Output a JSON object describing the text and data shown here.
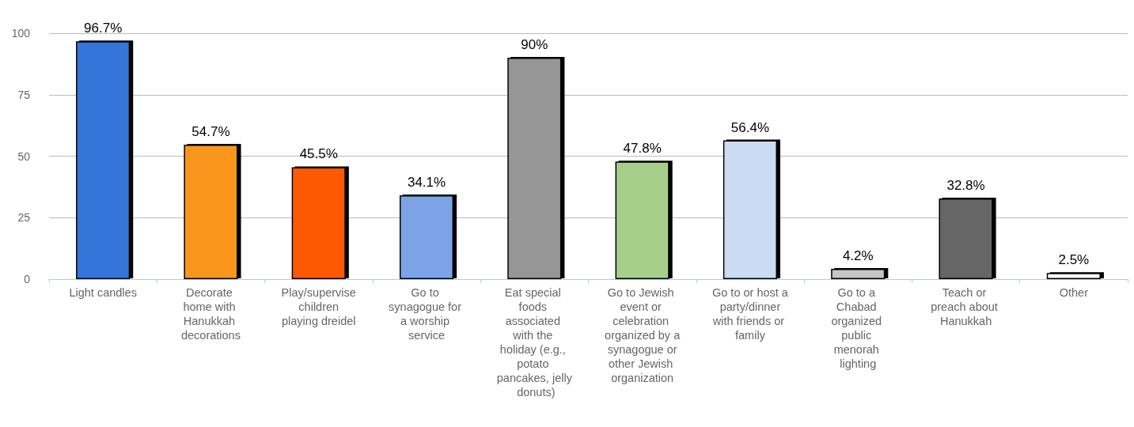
{
  "chart_data": {
    "type": "bar",
    "categories": [
      "Light candles",
      "Decorate home with Hanukkah decorations",
      "Play/supervise children playing dreidel",
      "Go to synagogue for a worship service",
      "Eat special foods associated with the holiday (e.g., potato pancakes, jelly donuts)",
      "Go to Jewish event or celebration organized by a synagogue or other Jewish organization",
      "Go to or host a party/dinner with friends or family",
      "Go to a Chabad organized public menorah lighting",
      "Teach or preach about Hanukkah",
      "Other"
    ],
    "values": [
      96.7,
      54.7,
      45.5,
      34.1,
      90,
      47.8,
      56.4,
      4.2,
      32.8,
      2.5
    ],
    "value_labels": [
      "96.7%",
      "54.7%",
      "45.5%",
      "34.1%",
      "90%",
      "47.8%",
      "56.4%",
      "4.2%",
      "32.8%",
      "2.5%"
    ],
    "colors": [
      "#3674d9",
      "#fa961e",
      "#fe5806",
      "#7ca3e6",
      "#969696",
      "#a6cf8b",
      "#ccdbf4",
      "#c5c5c5",
      "#666666",
      "#ffffff"
    ],
    "ylim": [
      0,
      100
    ],
    "yticks": [
      0,
      25,
      50,
      75,
      100
    ],
    "grid": "y"
  }
}
